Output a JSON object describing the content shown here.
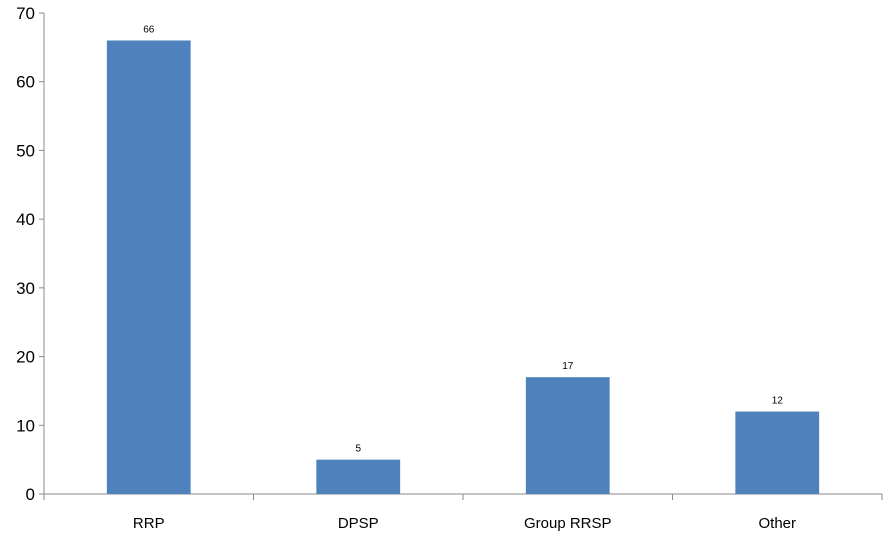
{
  "chart_data": {
    "type": "bar",
    "title": "",
    "xlabel": "",
    "ylabel": "",
    "categories": [
      "RRP",
      "DPSP",
      "Group RRSP",
      "Other"
    ],
    "values": [
      66,
      5,
      17,
      12
    ],
    "data_labels": [
      "66",
      "5",
      "17",
      "12"
    ],
    "ylim": [
      0,
      70
    ],
    "y_ticks": [
      0,
      10,
      20,
      30,
      40,
      50,
      60,
      70
    ],
    "y_tick_labels": [
      "0",
      "10",
      "20",
      "30",
      "40",
      "50",
      "60",
      "70"
    ],
    "grid": false,
    "legend": "none",
    "bar_color": "#4F81BD"
  }
}
